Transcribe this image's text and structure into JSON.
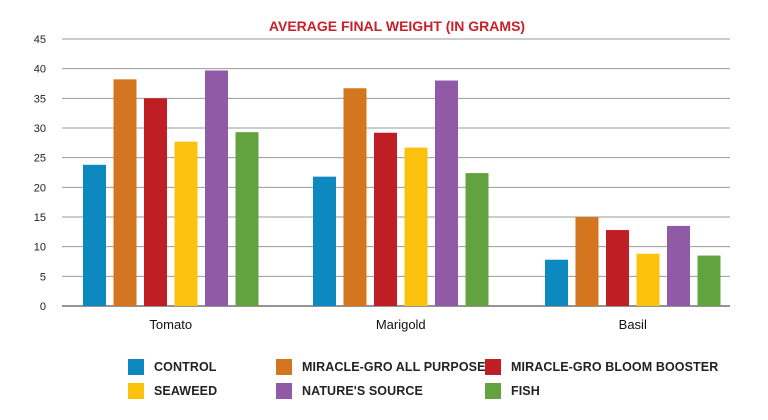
{
  "chart_data": {
    "type": "bar",
    "title": "AVERAGE FINAL WEIGHT (IN GRAMS)",
    "xlabel": "",
    "ylabel": "",
    "ylim": [
      0,
      45
    ],
    "yticks": [
      0,
      5,
      10,
      15,
      20,
      25,
      30,
      35,
      40,
      45
    ],
    "grid": true,
    "legend_position": "bottom",
    "categories": [
      "Tomato",
      "Marigold",
      "Basil"
    ],
    "series": [
      {
        "name": "CONTROL",
        "color": "#0e89c0",
        "values": [
          23.8,
          21.8,
          7.8
        ]
      },
      {
        "name": "MIRACLE-GRO ALL PURPOSE",
        "color": "#d3761f",
        "values": [
          38.2,
          36.7,
          15.0
        ]
      },
      {
        "name": "MIRACLE-GRO BLOOM BOOSTER",
        "color": "#be1e24",
        "values": [
          35.0,
          29.2,
          12.8
        ]
      },
      {
        "name": "SEAWEED",
        "color": "#fcc20d",
        "values": [
          27.7,
          26.7,
          8.8
        ]
      },
      {
        "name": "NATURE'S SOURCE",
        "color": "#915aa6",
        "values": [
          39.7,
          38.0,
          13.5
        ]
      },
      {
        "name": "FISH",
        "color": "#62a23f",
        "values": [
          29.3,
          22.4,
          8.5
        ]
      }
    ]
  }
}
